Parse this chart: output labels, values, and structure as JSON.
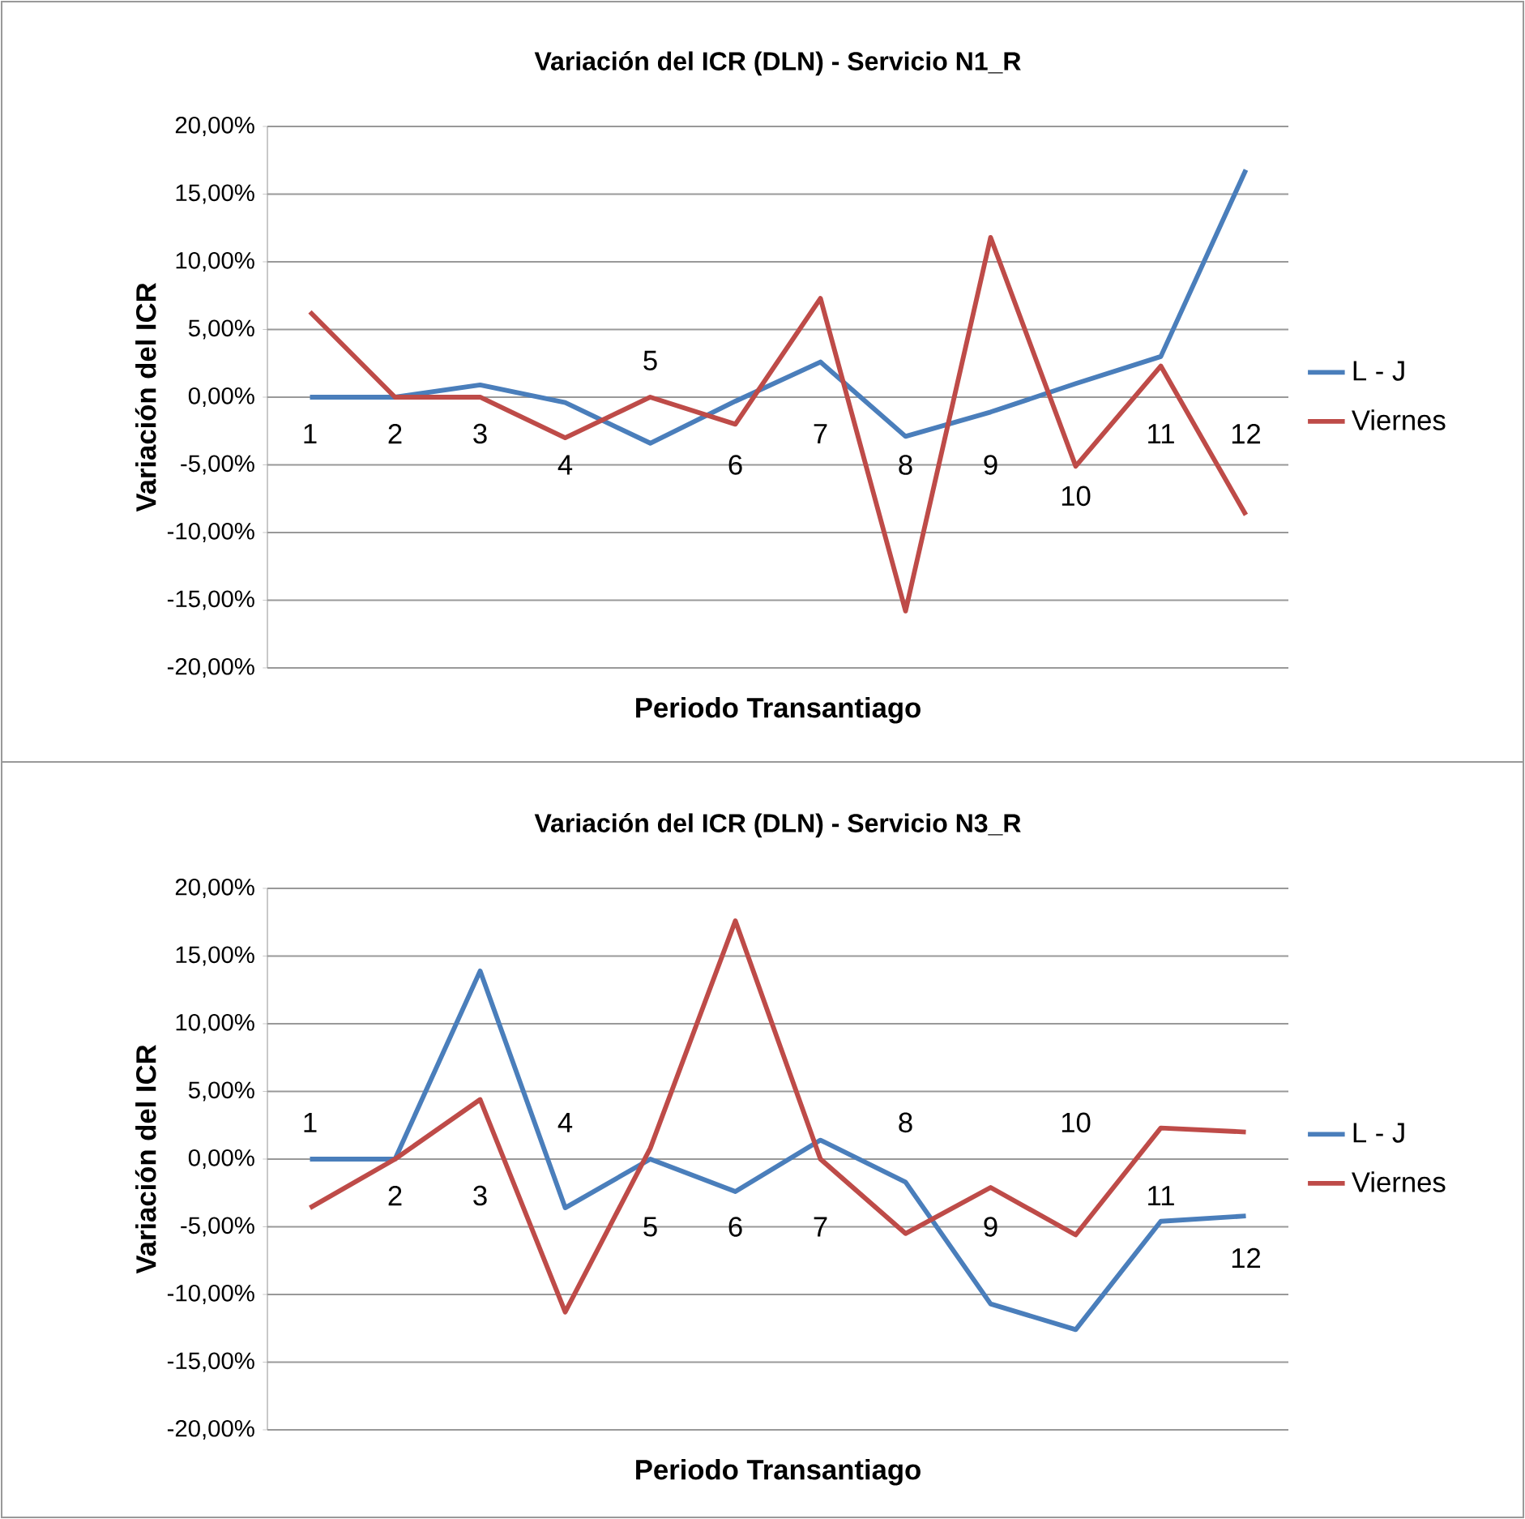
{
  "chart_data": [
    {
      "type": "line",
      "title": "Variación del ICR (DLN) - Servicio N1_R",
      "xlabel": "Periodo Transantiago",
      "ylabel": "Variación  del  ICR",
      "categories": [
        "1",
        "2",
        "3",
        "4",
        "5",
        "6",
        "7",
        "8",
        "9",
        "10",
        "11",
        "12"
      ],
      "series": [
        {
          "name": "L - J",
          "color": "#4a7ebb",
          "values": [
            0,
            0,
            0.9,
            -0.4,
            -3.4,
            -0.3,
            2.6,
            -2.9,
            -1.1,
            1.0,
            3.0,
            16.8
          ]
        },
        {
          "name": "Viernes",
          "color": "#be4b48",
          "values": [
            6.3,
            0,
            0,
            -3.0,
            0,
            -2.0,
            7.3,
            -15.8,
            11.8,
            -5.1,
            2.3,
            -8.7
          ]
        }
      ],
      "ylim": [
        -20,
        20
      ],
      "yticks": [
        {
          "value": -20,
          "label": "-20,00%"
        },
        {
          "value": -15,
          "label": "-15,00%"
        },
        {
          "value": -10,
          "label": "-10,00%"
        },
        {
          "value": -5,
          "label": "-5,00%"
        },
        {
          "value": 0,
          "label": "0,00%"
        },
        {
          "value": 5,
          "label": "5,00%"
        },
        {
          "value": 10,
          "label": "10,00%"
        },
        {
          "value": 15,
          "label": "15,00%"
        },
        {
          "value": 20,
          "label": "20,00%"
        }
      ],
      "grid": "y",
      "legend": "right"
    },
    {
      "type": "line",
      "title": "Variación del ICR (DLN) - Servicio N3_R",
      "xlabel": "Periodo Transantiago",
      "ylabel": "Variación  del  ICR",
      "categories": [
        "1",
        "2",
        "3",
        "4",
        "5",
        "6",
        "7",
        "8",
        "9",
        "10",
        "11",
        "12"
      ],
      "series": [
        {
          "name": "L - J",
          "color": "#4a7ebb",
          "values": [
            0,
            0,
            13.9,
            -3.6,
            0,
            -2.4,
            1.4,
            -1.7,
            -10.7,
            -12.6,
            -4.6,
            -4.2
          ]
        },
        {
          "name": "Viernes",
          "color": "#be4b48",
          "values": [
            -3.6,
            0,
            4.4,
            -11.3,
            0.8,
            17.6,
            0,
            -5.5,
            -2.1,
            -5.6,
            2.3,
            2.0
          ]
        }
      ],
      "ylim": [
        -20,
        20
      ],
      "yticks": [
        {
          "value": -20,
          "label": "-20,00%"
        },
        {
          "value": -15,
          "label": "-15,00%"
        },
        {
          "value": -10,
          "label": "-10,00%"
        },
        {
          "value": -5,
          "label": "-5,00%"
        },
        {
          "value": 0,
          "label": "0,00%"
        },
        {
          "value": 5,
          "label": "5,00%"
        },
        {
          "value": 10,
          "label": "10,00%"
        },
        {
          "value": 15,
          "label": "15,00%"
        },
        {
          "value": 20,
          "label": "20,00%"
        }
      ],
      "grid": "y",
      "legend": "right"
    }
  ]
}
